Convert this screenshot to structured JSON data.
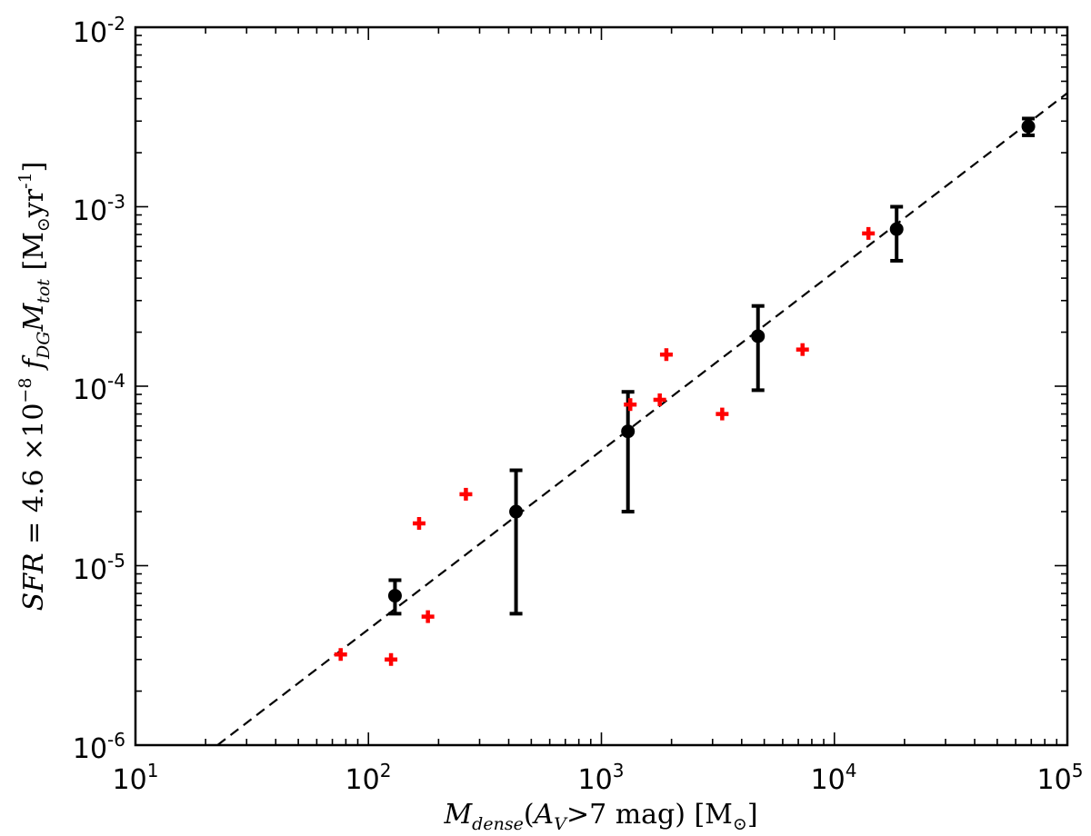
{
  "chart_data": {
    "type": "scatter",
    "xscale": "log",
    "yscale": "log",
    "xlim": [
      10,
      100000
    ],
    "ylim": [
      1e-06,
      0.01
    ],
    "x_ticks": [
      {
        "base": "10",
        "exp": "1"
      },
      {
        "base": "10",
        "exp": "2"
      },
      {
        "base": "10",
        "exp": "3"
      },
      {
        "base": "10",
        "exp": "4"
      },
      {
        "base": "10",
        "exp": "5"
      }
    ],
    "y_ticks": [
      {
        "base": "10",
        "exp": "-6"
      },
      {
        "base": "10",
        "exp": "-5"
      },
      {
        "base": "10",
        "exp": "-4"
      },
      {
        "base": "10",
        "exp": "-3"
      },
      {
        "base": "10",
        "exp": "-2"
      }
    ],
    "xlabel": {
      "m": "M",
      "m_sub": "dense",
      "open": "(",
      "a": "A",
      "a_sub": "V",
      "rest": ">7 mag) [M",
      "sun": "⊙",
      "close": "]"
    },
    "ylabel": {
      "sfr": "SFR",
      "eq": " = 4.6 ×10",
      "exp": "−8",
      "f": " f",
      "f_sub": "DG",
      "m": "M",
      "m_sub": "tot",
      "unit_open": " [M",
      "sun": "⊙",
      "unit_yr": "yr",
      "unit_exp": "-1",
      "unit_close": "]"
    },
    "grid": false,
    "series": [
      {
        "marker": "circle",
        "color": "#000000",
        "points": [
          {
            "x": 130,
            "y": 6.8e-06,
            "ylow": 5.4e-06,
            "yhigh": 8.3e-06
          },
          {
            "x": 430,
            "y": 2e-05,
            "ylow": 5.4e-06,
            "yhigh": 3.4e-05
          },
          {
            "x": 1300,
            "y": 5.6e-05,
            "ylow": 2e-05,
            "yhigh": 9.3e-05
          },
          {
            "x": 4700,
            "y": 0.00019,
            "ylow": 9.5e-05,
            "yhigh": 0.00028
          },
          {
            "x": 18500,
            "y": 0.00075,
            "ylow": 0.0005,
            "yhigh": 0.001
          },
          {
            "x": 68000,
            "y": 0.0028,
            "ylow": 0.0025,
            "yhigh": 0.0031
          }
        ]
      },
      {
        "marker": "plus",
        "color": "#ff0000",
        "points": [
          {
            "x": 76,
            "y": 3.2e-06
          },
          {
            "x": 125,
            "y": 3e-06
          },
          {
            "x": 165,
            "y": 1.72e-05
          },
          {
            "x": 180,
            "y": 5.2e-06
          },
          {
            "x": 262,
            "y": 2.5e-05
          },
          {
            "x": 1330,
            "y": 7.9e-05
          },
          {
            "x": 1780,
            "y": 8.4e-05
          },
          {
            "x": 1900,
            "y": 0.00015
          },
          {
            "x": 3300,
            "y": 7e-05
          },
          {
            "x": 7300,
            "y": 0.00016
          },
          {
            "x": 14000,
            "y": 0.00071
          }
        ]
      }
    ],
    "fit_line": {
      "style": "dashed",
      "color": "#000000",
      "points": [
        [
          22.5,
          1e-06
        ],
        [
          100000,
          0.0043
        ]
      ]
    }
  }
}
